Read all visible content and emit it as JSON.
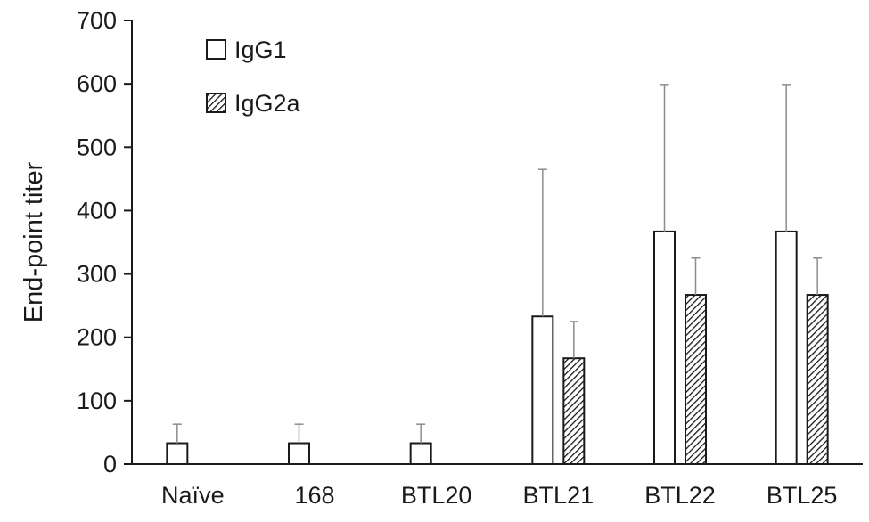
{
  "chart_data": {
    "type": "bar",
    "categories": [
      "Naïve",
      "168",
      "BTL20",
      "BTL21",
      "BTL22",
      "BTL25"
    ],
    "series": [
      {
        "name": "IgG1",
        "values": [
          33,
          33,
          33,
          233,
          367,
          367
        ],
        "error": [
          30,
          30,
          30,
          232,
          232,
          232
        ],
        "pattern": "open"
      },
      {
        "name": "IgG2a",
        "values": [
          0,
          0,
          0,
          167,
          267,
          267
        ],
        "error": [
          0,
          0,
          0,
          58,
          58,
          58
        ],
        "pattern": "hatched"
      }
    ],
    "ylabel": "End-point titer",
    "xlabel": "",
    "ylim": [
      0,
      700
    ],
    "yticks": [
      0,
      100,
      200,
      300,
      400,
      500,
      600,
      700
    ],
    "grid": false,
    "legend": "top-left",
    "colors": {
      "bar_fill": "#ffffff",
      "bar_stroke": "#1a1a1a",
      "hatch": "#1a1a1a",
      "error_bar": "#8c8c8c",
      "axis": "#1a1a1a"
    }
  }
}
